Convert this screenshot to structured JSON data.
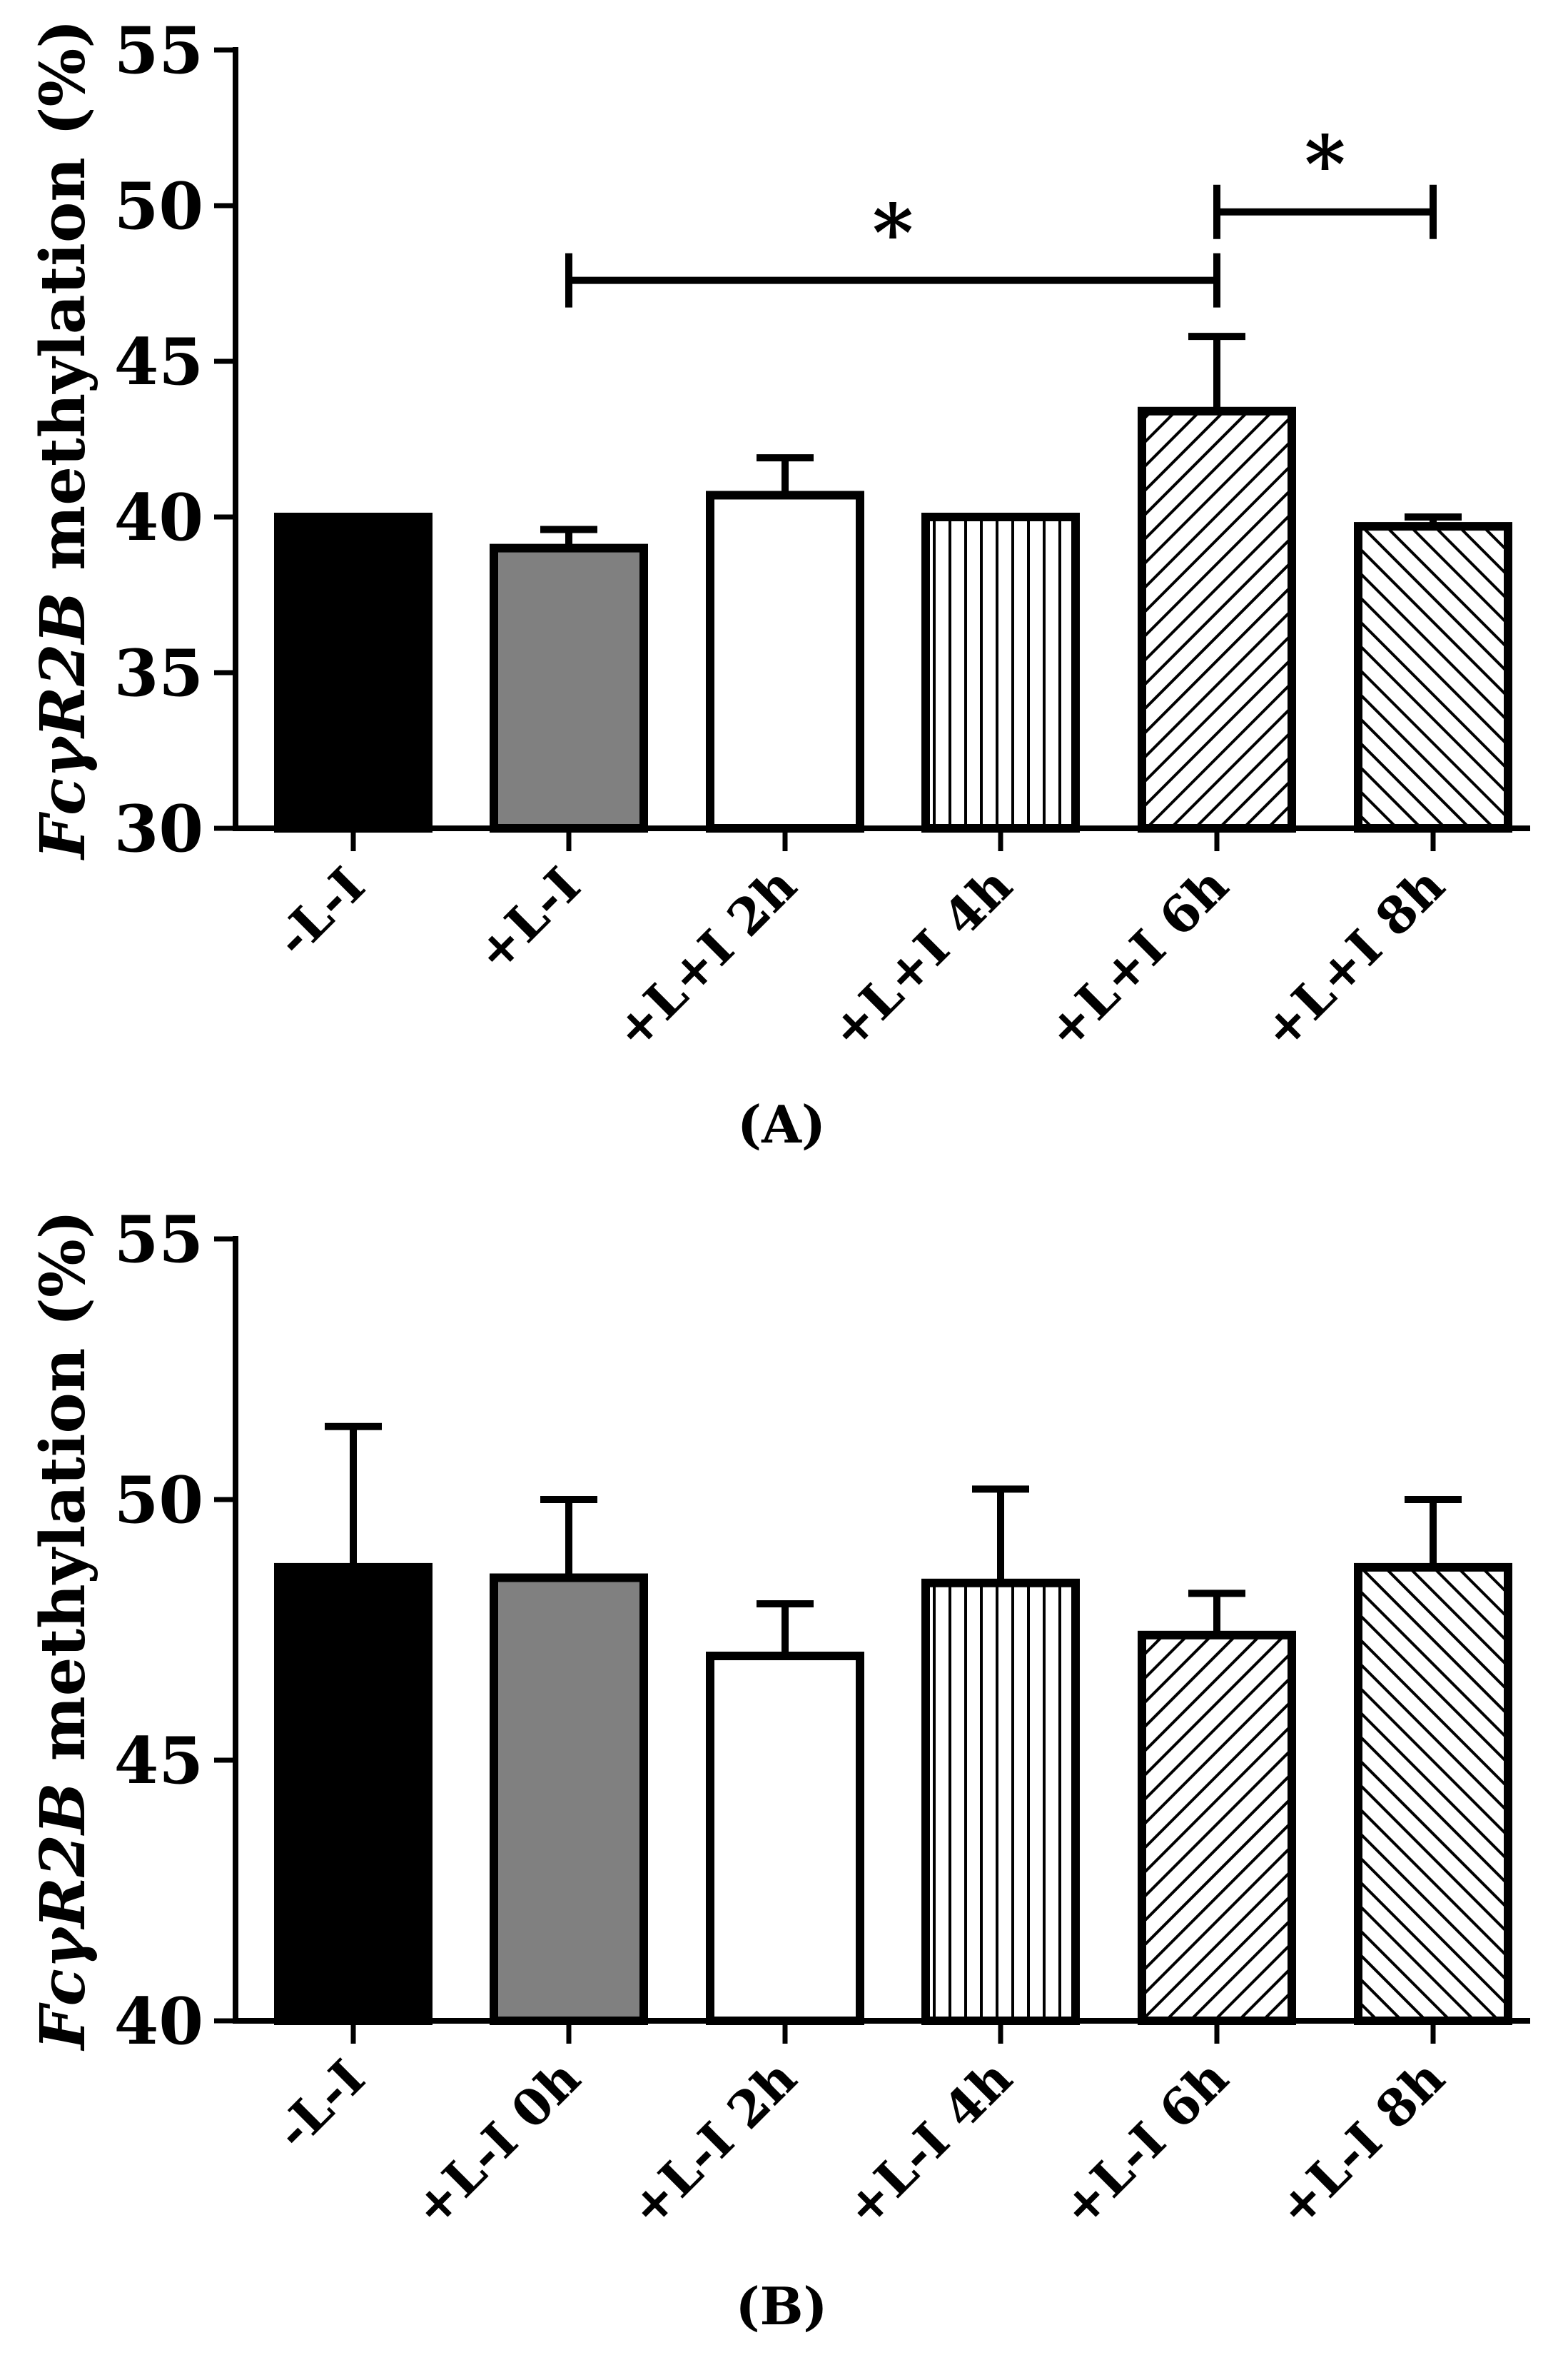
{
  "colors": {
    "black": "#000000",
    "gray": "#808080",
    "white": "#ffffff"
  },
  "chart_data": [
    {
      "type": "bar",
      "panel_label": "(A)",
      "ylabel": {
        "gene": "FcγR2B",
        "rest": " methylation (%)"
      },
      "ylim": [
        30,
        55
      ],
      "yticks": [
        30,
        35,
        40,
        45,
        50,
        55
      ],
      "categories": [
        "-L-I",
        "+L-I",
        "+L+I 2h",
        "+L+I 4h",
        "+L+I 6h",
        "+L+I 8h"
      ],
      "values": [
        40.0,
        39.0,
        40.7,
        40.0,
        43.4,
        39.7
      ],
      "errors": [
        0,
        0.6,
        1.2,
        0,
        2.4,
        0.3
      ],
      "fills": [
        "black",
        "gray",
        "white",
        "vertical",
        "diag-up",
        "diag-down"
      ],
      "significance": [
        {
          "from": 1,
          "to": 4,
          "y": 47.6,
          "label": "*"
        },
        {
          "from": 4,
          "to": 5,
          "y": 49.8,
          "label": "*"
        }
      ]
    },
    {
      "type": "bar",
      "panel_label": "(B)",
      "ylabel": {
        "gene": "FcγR2B",
        "rest": " methylation (%)"
      },
      "ylim": [
        40,
        55
      ],
      "yticks": [
        40,
        45,
        50,
        55
      ],
      "categories": [
        "-L-I",
        "+L-I 0h",
        "+L-I 2h",
        "+L-I 4h",
        "+L-I 6h",
        "+L-I 8h"
      ],
      "values": [
        48.7,
        48.5,
        47.0,
        48.4,
        47.4,
        48.7
      ],
      "errors": [
        2.7,
        1.5,
        1.0,
        1.8,
        0.8,
        1.3
      ],
      "fills": [
        "black",
        "gray",
        "white",
        "vertical",
        "diag-up",
        "diag-down"
      ],
      "significance": []
    }
  ]
}
